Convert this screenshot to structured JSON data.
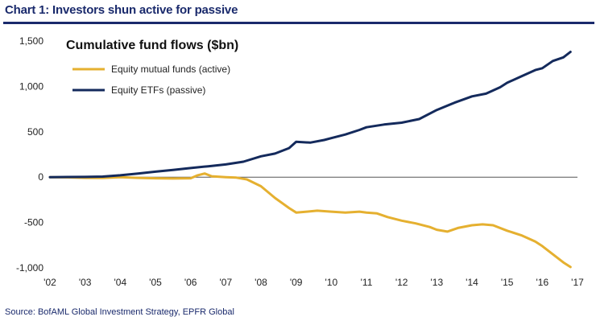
{
  "header": {
    "title": "Chart 1: Investors shun active for passive"
  },
  "footer": {
    "source": "Source: BofAML Global Investment Strategy, EPFR Global"
  },
  "colors": {
    "active": "#e5b030",
    "passive": "#142a5c",
    "title": "#1a2a6c",
    "zero_line": "#555555"
  },
  "chart_data": {
    "type": "line",
    "title": "Cumulative fund flows ($bn)",
    "xlabel": "",
    "ylabel": "",
    "xlim": [
      2002.0,
      2017.0
    ],
    "ylim": [
      -1000,
      1500
    ],
    "x_ticks": [
      2002,
      2003,
      2004,
      2005,
      2006,
      2007,
      2008,
      2009,
      2010,
      2011,
      2012,
      2013,
      2014,
      2015,
      2016,
      2017
    ],
    "x_tick_labels": [
      "'02",
      "'03",
      "'04",
      "'05",
      "'06",
      "'07",
      "'08",
      "'09",
      "'10",
      "'11",
      "'12",
      "'13",
      "'14",
      "'15",
      "'16",
      "'17"
    ],
    "y_ticks": [
      -1000,
      -500,
      0,
      500,
      1000,
      1500
    ],
    "y_tick_labels": [
      "-1,000",
      "-500",
      "0",
      "500",
      "1,000",
      "1,500"
    ],
    "legend_position": "top-left",
    "grid": false,
    "series": [
      {
        "name": "Equity mutual funds (active)",
        "color": "#e5b030",
        "points": [
          [
            2002.0,
            0
          ],
          [
            2002.5,
            -3
          ],
          [
            2003.0,
            -8
          ],
          [
            2003.5,
            -10
          ],
          [
            2004.0,
            0
          ],
          [
            2004.5,
            -8
          ],
          [
            2005.0,
            -12
          ],
          [
            2005.5,
            -15
          ],
          [
            2006.0,
            -12
          ],
          [
            2006.2,
            20
          ],
          [
            2006.4,
            40
          ],
          [
            2006.6,
            10
          ],
          [
            2007.0,
            0
          ],
          [
            2007.3,
            -5
          ],
          [
            2007.6,
            -25
          ],
          [
            2008.0,
            -100
          ],
          [
            2008.4,
            -230
          ],
          [
            2008.8,
            -340
          ],
          [
            2009.0,
            -390
          ],
          [
            2009.3,
            -380
          ],
          [
            2009.6,
            -370
          ],
          [
            2010.0,
            -380
          ],
          [
            2010.4,
            -390
          ],
          [
            2010.8,
            -380
          ],
          [
            2011.0,
            -390
          ],
          [
            2011.3,
            -400
          ],
          [
            2011.6,
            -440
          ],
          [
            2012.0,
            -480
          ],
          [
            2012.4,
            -510
          ],
          [
            2012.8,
            -550
          ],
          [
            2013.0,
            -580
          ],
          [
            2013.3,
            -600
          ],
          [
            2013.6,
            -560
          ],
          [
            2014.0,
            -530
          ],
          [
            2014.3,
            -520
          ],
          [
            2014.6,
            -530
          ],
          [
            2015.0,
            -590
          ],
          [
            2015.4,
            -640
          ],
          [
            2015.8,
            -710
          ],
          [
            2016.0,
            -760
          ],
          [
            2016.3,
            -850
          ],
          [
            2016.6,
            -940
          ],
          [
            2016.8,
            -990
          ]
        ]
      },
      {
        "name": "Equity ETFs (passive)",
        "color": "#142a5c",
        "points": [
          [
            2002.0,
            0
          ],
          [
            2002.5,
            2
          ],
          [
            2003.0,
            3
          ],
          [
            2003.5,
            6
          ],
          [
            2004.0,
            20
          ],
          [
            2004.5,
            40
          ],
          [
            2005.0,
            60
          ],
          [
            2005.5,
            80
          ],
          [
            2006.0,
            100
          ],
          [
            2006.5,
            120
          ],
          [
            2007.0,
            140
          ],
          [
            2007.5,
            170
          ],
          [
            2008.0,
            230
          ],
          [
            2008.4,
            260
          ],
          [
            2008.8,
            320
          ],
          [
            2009.0,
            390
          ],
          [
            2009.4,
            380
          ],
          [
            2009.8,
            410
          ],
          [
            2010.0,
            430
          ],
          [
            2010.4,
            470
          ],
          [
            2010.8,
            520
          ],
          [
            2011.0,
            550
          ],
          [
            2011.5,
            580
          ],
          [
            2012.0,
            600
          ],
          [
            2012.5,
            640
          ],
          [
            2013.0,
            740
          ],
          [
            2013.5,
            820
          ],
          [
            2014.0,
            890
          ],
          [
            2014.4,
            920
          ],
          [
            2014.8,
            990
          ],
          [
            2015.0,
            1040
          ],
          [
            2015.4,
            1110
          ],
          [
            2015.8,
            1180
          ],
          [
            2016.0,
            1200
          ],
          [
            2016.3,
            1280
          ],
          [
            2016.6,
            1320
          ],
          [
            2016.8,
            1380
          ]
        ]
      }
    ]
  }
}
